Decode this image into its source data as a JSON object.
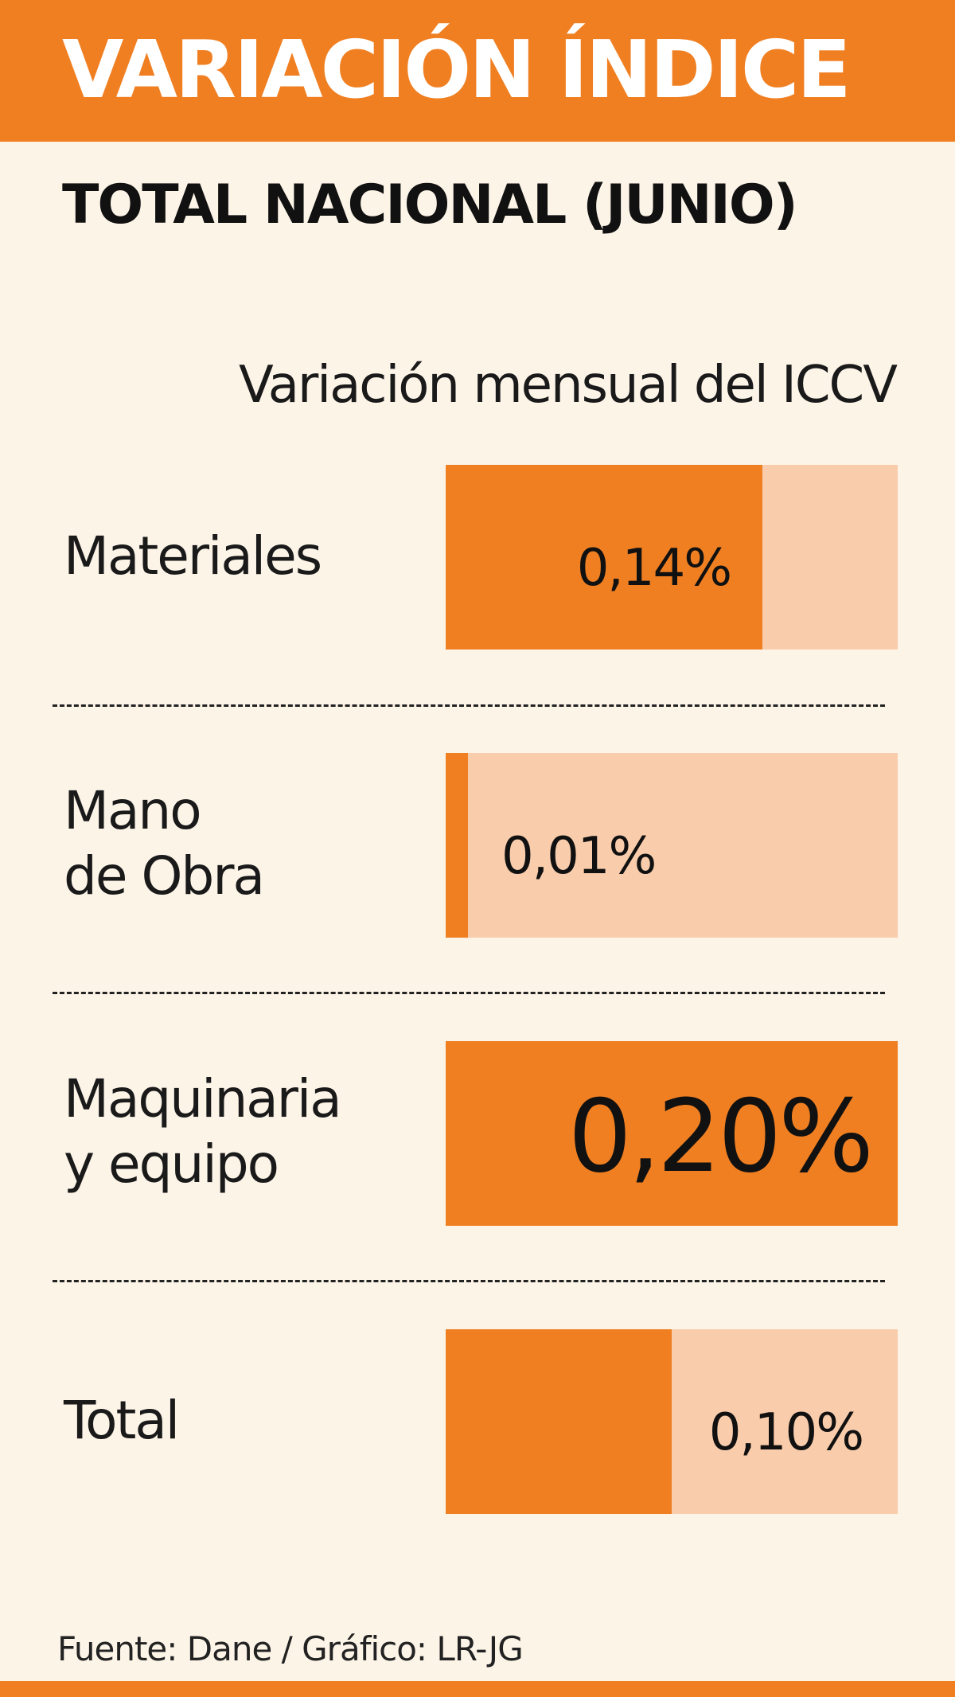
{
  "header": {
    "title": "VARIACIÓN ÍNDICE"
  },
  "subtitle": "TOTAL NACIONAL (JUNIO)",
  "source": "Fuente: Dane / Gráfico: LR-JG",
  "colors": {
    "accent": "#f07f22",
    "track": "#f9cdac",
    "background": "#fdf4e8"
  },
  "chart_data": {
    "type": "bar",
    "orientation": "horizontal",
    "title": "Variación mensual del ICCV",
    "xlim": [
      0,
      0.2
    ],
    "unit": "%",
    "categories": [
      "Materiales",
      "Mano\nde Obra",
      "Maquinaria\ny equipo",
      "Total"
    ],
    "values": [
      0.14,
      0.01,
      0.2,
      0.1
    ],
    "value_labels": [
      "0,14%",
      "0,01%",
      "0,20%",
      "0,10%"
    ],
    "grid": false,
    "legend": "none"
  }
}
